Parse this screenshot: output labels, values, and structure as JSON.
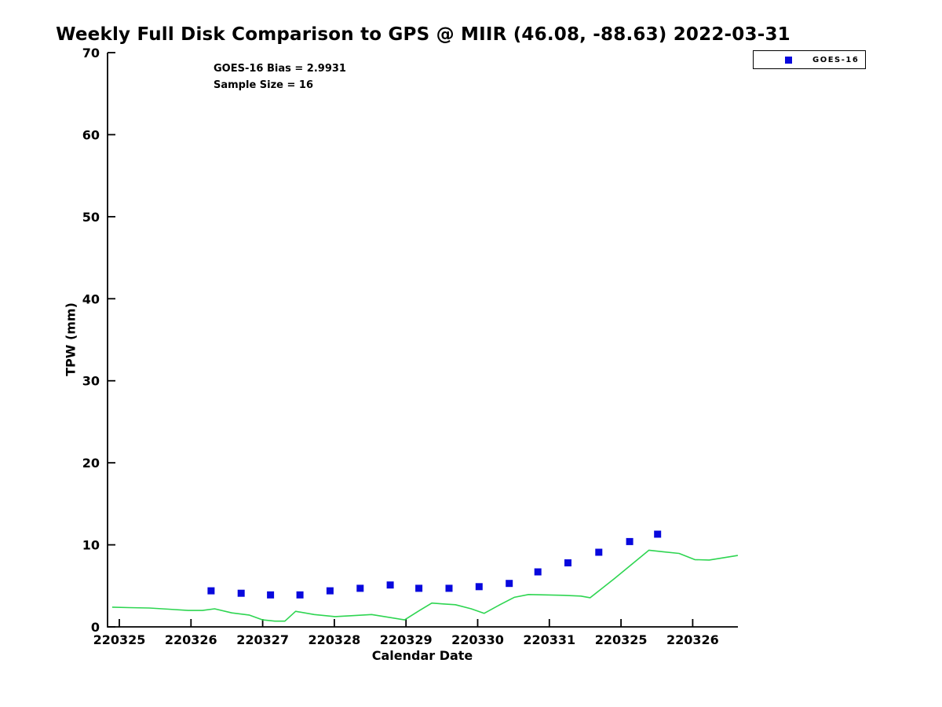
{
  "title": "Weekly Full Disk Comparison to GPS @ MIIR (46.08, -88.63) 2022-03-31",
  "annotations": {
    "bias": "GOES-16 Bias = 2.9931",
    "sample_size": "Sample Size = 16"
  },
  "legend": {
    "position": "top-right",
    "entries": [
      {
        "label": "GOES-16",
        "marker": "square",
        "color": "#0808dd"
      }
    ]
  },
  "chart_data": {
    "type": "line",
    "title": "Weekly Full Disk Comparison to GPS @ MIIR (46.08, -88.63) 2022-03-31",
    "xlabel": "Calendar Date",
    "ylabel": "TPW (mm)",
    "ylim": [
      0,
      70
    ],
    "y_ticks": [
      0,
      10,
      20,
      30,
      40,
      50,
      60,
      70
    ],
    "x_tick_labels": [
      "220325",
      "220326",
      "220327",
      "220328",
      "220329",
      "220330",
      "220331",
      "220325",
      "220326"
    ],
    "grid": false,
    "legend_position": "top-right",
    "annotations": [
      "GOES-16 Bias = 2.9931",
      "Sample Size = 16"
    ],
    "series": [
      {
        "name": "GPS",
        "type": "line",
        "color": "#2ed551",
        "x": [
          -0.1,
          0.14,
          0.42,
          0.69,
          0.96,
          1.16,
          1.33,
          1.57,
          1.81,
          2.0,
          2.17,
          2.31,
          2.46,
          2.72,
          3.01,
          3.21,
          3.52,
          3.7,
          3.98,
          4.19,
          4.36,
          4.52,
          4.69,
          4.91,
          5.09,
          5.31,
          5.51,
          5.71,
          5.95,
          6.19,
          6.44,
          6.57,
          6.91,
          7.39,
          7.59,
          7.81,
          8.03,
          8.23,
          8.41,
          8.63
        ],
        "y": [
          2.4,
          2.35,
          2.3,
          2.15,
          2.0,
          2.0,
          2.2,
          1.7,
          1.45,
          0.85,
          0.7,
          0.7,
          1.9,
          1.5,
          1.25,
          1.35,
          1.5,
          1.25,
          0.85,
          2.0,
          2.9,
          2.8,
          2.7,
          2.2,
          1.65,
          2.7,
          3.6,
          3.95,
          3.9,
          3.85,
          3.75,
          3.55,
          5.9,
          9.35,
          9.15,
          8.95,
          8.2,
          8.15,
          8.4,
          8.7
        ]
      },
      {
        "name": "GOES-16",
        "type": "scatter",
        "marker": "square",
        "color": "#0808dd",
        "x": [
          1.28,
          1.7,
          2.11,
          2.52,
          2.94,
          3.36,
          3.78,
          4.18,
          4.6,
          5.02,
          5.44,
          5.84,
          6.26,
          6.69,
          7.12,
          7.51
        ],
        "y": [
          4.4,
          4.1,
          3.9,
          3.9,
          4.4,
          4.7,
          5.1,
          4.7,
          4.7,
          4.9,
          5.3,
          6.7,
          7.8,
          9.1,
          10.4,
          11.3
        ]
      }
    ]
  }
}
